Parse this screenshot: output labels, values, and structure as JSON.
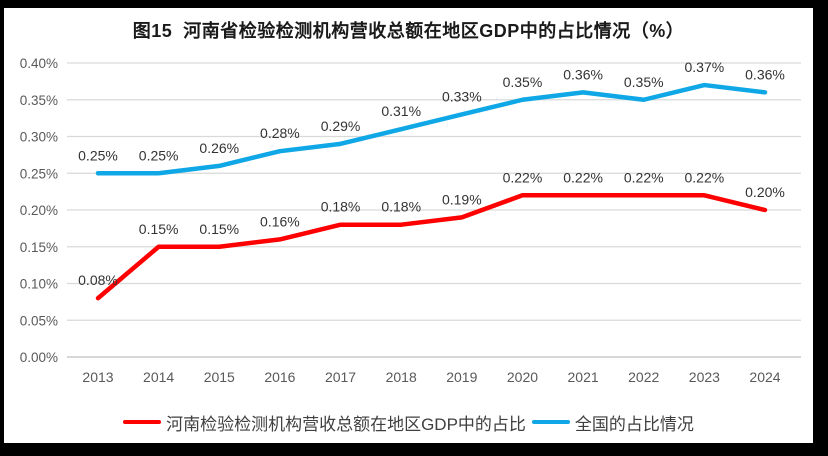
{
  "title": "图15  河南省检验检测机构营收总额在地区GDP中的占比情况（%）",
  "chart_data": {
    "type": "line",
    "categories": [
      "2013",
      "2014",
      "2015",
      "2016",
      "2017",
      "2018",
      "2019",
      "2020",
      "2021",
      "2022",
      "2023",
      "2024"
    ],
    "series": [
      {
        "name": "河南检验检测机构营收总额在地区GDP中的占比",
        "color": "#FE0000",
        "values": [
          0.08,
          0.15,
          0.15,
          0.16,
          0.18,
          0.18,
          0.19,
          0.22,
          0.22,
          0.22,
          0.22,
          0.2
        ],
        "point_labels": [
          "0.08%",
          "0.15%",
          "0.15%",
          "0.16%",
          "0.18%",
          "0.18%",
          "0.19%",
          "0.22%",
          "0.22%",
          "0.22%",
          "0.22%",
          "0.20%"
        ]
      },
      {
        "name": "全国的占比情况",
        "color": "#0FA7E6",
        "values": [
          0.25,
          0.25,
          0.26,
          0.28,
          0.29,
          0.31,
          0.33,
          0.35,
          0.36,
          0.35,
          0.37,
          0.36
        ],
        "point_labels": [
          "0.25%",
          "0.25%",
          "0.26%",
          "0.28%",
          "0.29%",
          "0.31%",
          "0.33%",
          "0.35%",
          "0.36%",
          "0.35%",
          "0.37%",
          "0.36%"
        ]
      }
    ],
    "xlabel": "",
    "ylabel": "",
    "ylim": [
      0,
      0.4
    ],
    "ytick_step": 0.05,
    "ytick_labels": [
      "0.00%",
      "0.05%",
      "0.10%",
      "0.15%",
      "0.20%",
      "0.25%",
      "0.30%",
      "0.35%",
      "0.40%"
    ],
    "grid": true,
    "legend_position": "bottom",
    "grid_color": "#D9D9D9",
    "baseline_color": "#BFBFBF"
  }
}
